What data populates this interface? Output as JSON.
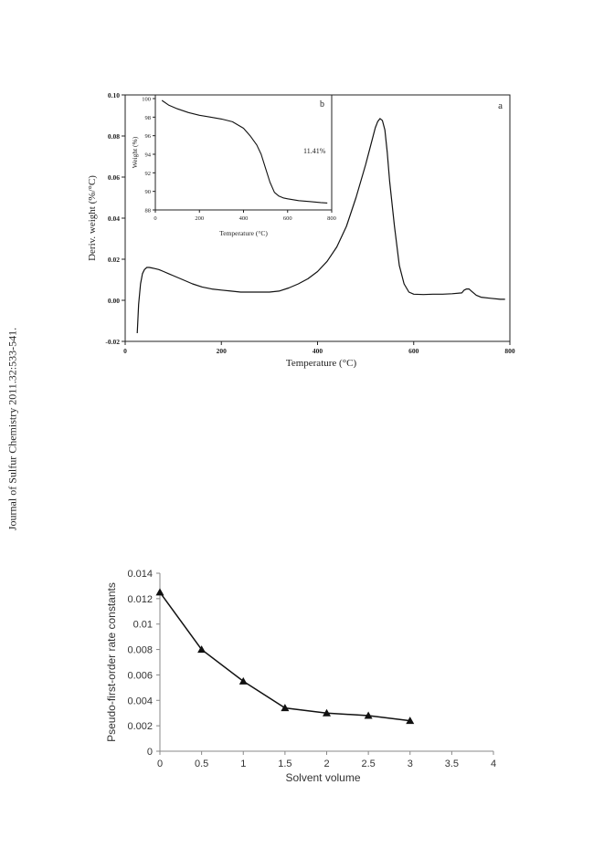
{
  "journal_ref": "Journal of Sulfur Chemistry 2011.32:533-541.",
  "chart_data": [
    {
      "type": "line",
      "panel_label": "a",
      "xlabel": "Temperature (°C)",
      "ylabel": "Deriv. weight (%/°C)",
      "xlim": [
        0,
        800
      ],
      "ylim": [
        -0.02,
        0.1
      ],
      "x_ticks": [
        "0",
        "200",
        "400",
        "600",
        "800"
      ],
      "y_ticks": [
        "-0.02",
        "0.00",
        "0.02",
        "0.04",
        "0.06",
        "0.08",
        "0.10"
      ],
      "grid": false,
      "series": [
        {
          "x": [
            25,
            28,
            32,
            36,
            40,
            45,
            50,
            55,
            60,
            70,
            80,
            90,
            100,
            120,
            140,
            160,
            180,
            200,
            220,
            240,
            260,
            280,
            300,
            320,
            340,
            360,
            380,
            400,
            420,
            440,
            460,
            480,
            500,
            510,
            520,
            525,
            530,
            535,
            540,
            545,
            550,
            560,
            570,
            580,
            590,
            600,
            620,
            640,
            660,
            680,
            700,
            705,
            710,
            715,
            720,
            730,
            740,
            760,
            780,
            790
          ],
          "values": [
            -0.016,
            -0.002,
            0.008,
            0.013,
            0.015,
            0.016,
            0.016,
            0.0158,
            0.0155,
            0.015,
            0.014,
            0.013,
            0.012,
            0.01,
            0.008,
            0.0065,
            0.0055,
            0.005,
            0.0045,
            0.004,
            0.004,
            0.004,
            0.004,
            0.0045,
            0.006,
            0.008,
            0.0105,
            0.014,
            0.019,
            0.026,
            0.036,
            0.05,
            0.066,
            0.075,
            0.084,
            0.087,
            0.0885,
            0.0875,
            0.083,
            0.072,
            0.058,
            0.036,
            0.017,
            0.008,
            0.004,
            0.003,
            0.0028,
            0.003,
            0.003,
            0.0032,
            0.0036,
            0.005,
            0.0055,
            0.0055,
            0.0045,
            0.0025,
            0.0015,
            0.001,
            0.0005,
            0.0005
          ]
        }
      ]
    },
    {
      "type": "line",
      "panel_label": "b",
      "annotation": "11.41%",
      "xlabel": "Temperature (°C)",
      "ylabel": "Weight (%)",
      "xlim": [
        0,
        800
      ],
      "ylim": [
        88,
        100
      ],
      "x_ticks": [
        "0",
        "200",
        "400",
        "600",
        "800"
      ],
      "y_ticks": [
        "88",
        "90",
        "92",
        "94",
        "96",
        "98",
        "100"
      ],
      "grid": false,
      "series": [
        {
          "x": [
            30,
            60,
            100,
            150,
            200,
            250,
            300,
            350,
            400,
            430,
            460,
            480,
            500,
            520,
            540,
            560,
            580,
            600,
            650,
            700,
            750,
            780
          ],
          "values": [
            99.8,
            99.3,
            98.9,
            98.5,
            98.2,
            98.0,
            97.8,
            97.5,
            96.8,
            96.0,
            95.0,
            94.0,
            92.5,
            91.0,
            89.9,
            89.5,
            89.3,
            89.2,
            89.0,
            88.9,
            88.8,
            88.75
          ]
        }
      ]
    },
    {
      "type": "line",
      "xlabel": "Solvent volume",
      "ylabel": "Pseudo-first-order rate constants",
      "xlim": [
        0,
        4
      ],
      "ylim": [
        0,
        0.014
      ],
      "x_ticks": [
        "0",
        "0.5",
        "1",
        "1.5",
        "2",
        "2.5",
        "3",
        "3.5",
        "4"
      ],
      "y_ticks": [
        "0",
        "0.002",
        "0.004",
        "0.006",
        "0.008",
        "0.01",
        "0.012",
        "0.014"
      ],
      "grid": false,
      "marker": "triangle",
      "series": [
        {
          "x": [
            0,
            0.5,
            1,
            1.5,
            2,
            2.5,
            3
          ],
          "values": [
            0.0125,
            0.008,
            0.0055,
            0.0034,
            0.003,
            0.0028,
            0.0024
          ]
        }
      ]
    }
  ]
}
